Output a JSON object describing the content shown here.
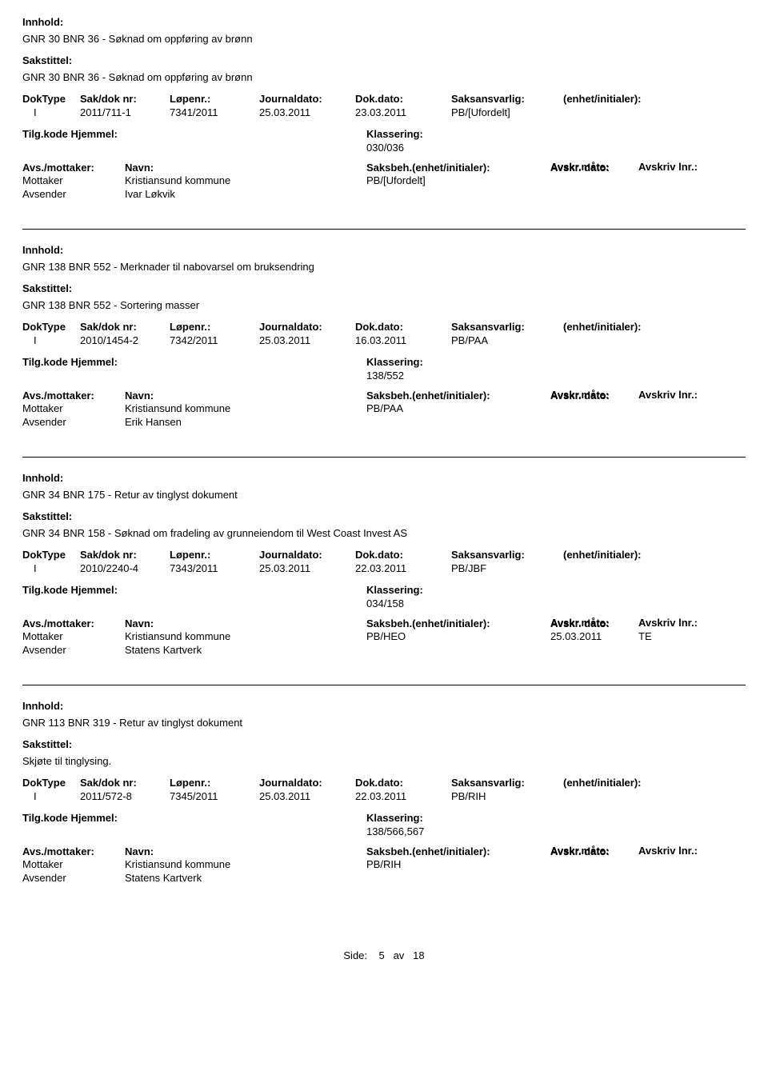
{
  "labels": {
    "innhold": "Innhold:",
    "sakstittel": "Sakstittel:",
    "doktype": "DokType",
    "sakdok": "Sak/dok nr:",
    "lopenr": "Løpenr.:",
    "journaldato": "Journaldato:",
    "dokdato": "Dok.dato:",
    "saksansvarlig": "Saksansvarlig:",
    "enhet": "(enhet/initialer):",
    "tilgkode": "Tilg.kode",
    "hjemmel": "Hjemmel:",
    "klassering": "Klassering:",
    "avsmottaker": "Avs./mottaker:",
    "navn": "Navn:",
    "saksbeh": "Saksbeh.(enhet/initialer):",
    "avskrdato": "Avskr. dato:",
    "avskrmate": "Avskr.måte:",
    "avskrivlnr": "Avskriv lnr.:",
    "mottaker": "Mottaker",
    "avsender": "Avsender",
    "side": "Side:",
    "av": "av"
  },
  "records": [
    {
      "innhold": "GNR 30 BNR 36 - Søknad om oppføring av brønn",
      "sakstittel": "GNR 30 BNR 36 - Søknad om oppføring av brønn",
      "doktype": "I",
      "sakdok": "2011/711-1",
      "lopenr": "7341/2011",
      "journaldato": "25.03.2011",
      "dokdato": "23.03.2011",
      "saksansvarlig": "PB/[Ufordelt]",
      "klassering": "030/036",
      "mottaker_name": "Kristiansund kommune",
      "mottaker_code": "PB/[Ufordelt]",
      "mottaker_date": "",
      "mottaker_mate": "",
      "avsender": "Ivar Løkvik",
      "show_avs_header": false
    },
    {
      "innhold": "GNR 138 BNR 552 - Merknader til nabovarsel om bruksendring",
      "sakstittel": "GNR 138 BNR 552 - Sortering masser",
      "doktype": "I",
      "sakdok": "2010/1454-2",
      "lopenr": "7342/2011",
      "journaldato": "25.03.2011",
      "dokdato": "16.03.2011",
      "saksansvarlig": "PB/PAA",
      "klassering": "138/552",
      "mottaker_name": "Kristiansund kommune",
      "mottaker_code": "PB/PAA",
      "mottaker_date": "",
      "mottaker_mate": "",
      "avsender": "Erik Hansen",
      "show_avs_header": false
    },
    {
      "innhold": "GNR 34 BNR 175 - Retur av tinglyst dokument",
      "sakstittel": "GNR 34 BNR 158 - Søknad om fradeling av grunneiendom til West Coast Invest AS",
      "doktype": "I",
      "sakdok": "2010/2240-4",
      "lopenr": "7343/2011",
      "journaldato": "25.03.2011",
      "dokdato": "22.03.2011",
      "saksansvarlig": "PB/JBF",
      "klassering": "034/158",
      "mottaker_name": "Kristiansund kommune",
      "mottaker_code": "PB/HEO",
      "mottaker_date": "25.03.2011",
      "mottaker_mate": "TE",
      "avsender": "Statens Kartverk",
      "show_avs_header": true
    },
    {
      "innhold": "GNR 113 BNR 319 - Retur av tinglyst dokument",
      "sakstittel": "Skjøte til tinglysing.",
      "doktype": "I",
      "sakdok": "2011/572-8",
      "lopenr": "7345/2011",
      "journaldato": "25.03.2011",
      "dokdato": "22.03.2011",
      "saksansvarlig": "PB/RIH",
      "klassering": "138/566,567",
      "mottaker_name": "Kristiansund kommune",
      "mottaker_code": "PB/RIH",
      "mottaker_date": "",
      "mottaker_mate": "",
      "avsender": "Statens Kartverk",
      "show_avs_header": true
    }
  ],
  "page": {
    "current": "5",
    "total": "18"
  }
}
